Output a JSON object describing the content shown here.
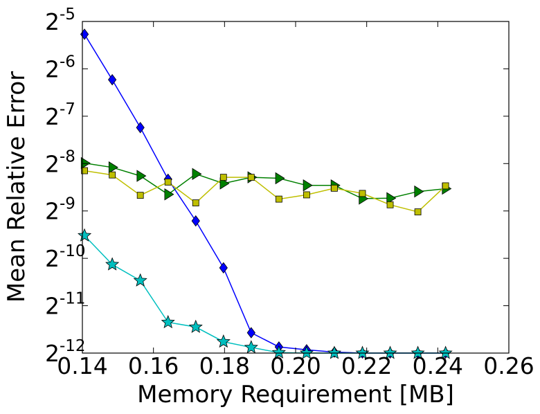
{
  "chart_data": {
    "type": "line",
    "title": "",
    "xlabel": "Memory Requirement [MB]",
    "ylabel": "Mean Relative Error",
    "xlim": [
      0.14,
      0.26
    ],
    "ylim_log2": [
      -12,
      -5
    ],
    "y_scale": "log2",
    "grid": false,
    "legend": "none",
    "x_ticks": [
      {
        "value": 0.14,
        "label": "0.14"
      },
      {
        "value": 0.16,
        "label": "0.16"
      },
      {
        "value": 0.18,
        "label": "0.18"
      },
      {
        "value": 0.2,
        "label": "0.20"
      },
      {
        "value": 0.22,
        "label": "0.22"
      },
      {
        "value": 0.24,
        "label": "0.24"
      },
      {
        "value": 0.26,
        "label": "0.26"
      }
    ],
    "y_ticks": [
      {
        "value": -12,
        "base": "2",
        "exp": "-12"
      },
      {
        "value": -11,
        "base": "2",
        "exp": "-11"
      },
      {
        "value": -10,
        "base": "2",
        "exp": "-10"
      },
      {
        "value": -9,
        "base": "2",
        "exp": "-9"
      },
      {
        "value": -8,
        "base": "2",
        "exp": "-8"
      },
      {
        "value": -7,
        "base": "2",
        "exp": "-7"
      },
      {
        "value": -6,
        "base": "2",
        "exp": "-6"
      },
      {
        "value": -5,
        "base": "2",
        "exp": "-5"
      }
    ],
    "series": [
      {
        "color": "#0000ff",
        "marker": "diamond",
        "x": [
          0.1406,
          0.1484,
          0.1563,
          0.1641,
          0.1719,
          0.1797,
          0.1875,
          0.1953,
          0.2031,
          0.2109,
          0.2188,
          0.2266,
          0.2344,
          0.2422
        ],
        "log2_y": [
          -5.27,
          -6.23,
          -7.24,
          -8.33,
          -9.21,
          -10.2,
          -11.57,
          -11.87,
          -11.93,
          -11.98,
          -12.0,
          -12.0,
          -12.0,
          -12.0
        ]
      },
      {
        "color": "#008000",
        "marker": "triangle-right",
        "x": [
          0.1406,
          0.1484,
          0.1563,
          0.1641,
          0.1719,
          0.1797,
          0.1875,
          0.1953,
          0.2031,
          0.2109,
          0.2188,
          0.2266,
          0.2344,
          0.2422
        ],
        "log2_y": [
          -7.99,
          -8.08,
          -8.26,
          -8.65,
          -8.22,
          -8.42,
          -8.29,
          -8.31,
          -8.46,
          -8.46,
          -8.74,
          -8.73,
          -8.59,
          -8.53
        ]
      },
      {
        "color": "#bfbf00",
        "marker": "square",
        "x": [
          0.1406,
          0.1484,
          0.1563,
          0.1641,
          0.1719,
          0.1797,
          0.1875,
          0.1953,
          0.2031,
          0.2109,
          0.2188,
          0.2266,
          0.2344,
          0.2422
        ],
        "log2_y": [
          -8.15,
          -8.24,
          -8.67,
          -8.39,
          -8.83,
          -8.29,
          -8.29,
          -8.75,
          -8.66,
          -8.52,
          -8.63,
          -8.87,
          -9.02,
          -8.47
        ]
      },
      {
        "color": "#00bfbf",
        "marker": "star",
        "x": [
          0.1406,
          0.1484,
          0.1563,
          0.1641,
          0.1719,
          0.1797,
          0.1875,
          0.1953,
          0.2031,
          0.2109,
          0.2188,
          0.2266,
          0.2344,
          0.2422
        ],
        "log2_y": [
          -9.52,
          -10.13,
          -10.47,
          -11.35,
          -11.45,
          -11.76,
          -11.88,
          -11.99,
          -12.0,
          -12.0,
          -12.0,
          -12.0,
          -12.0,
          -12.0
        ]
      }
    ]
  }
}
